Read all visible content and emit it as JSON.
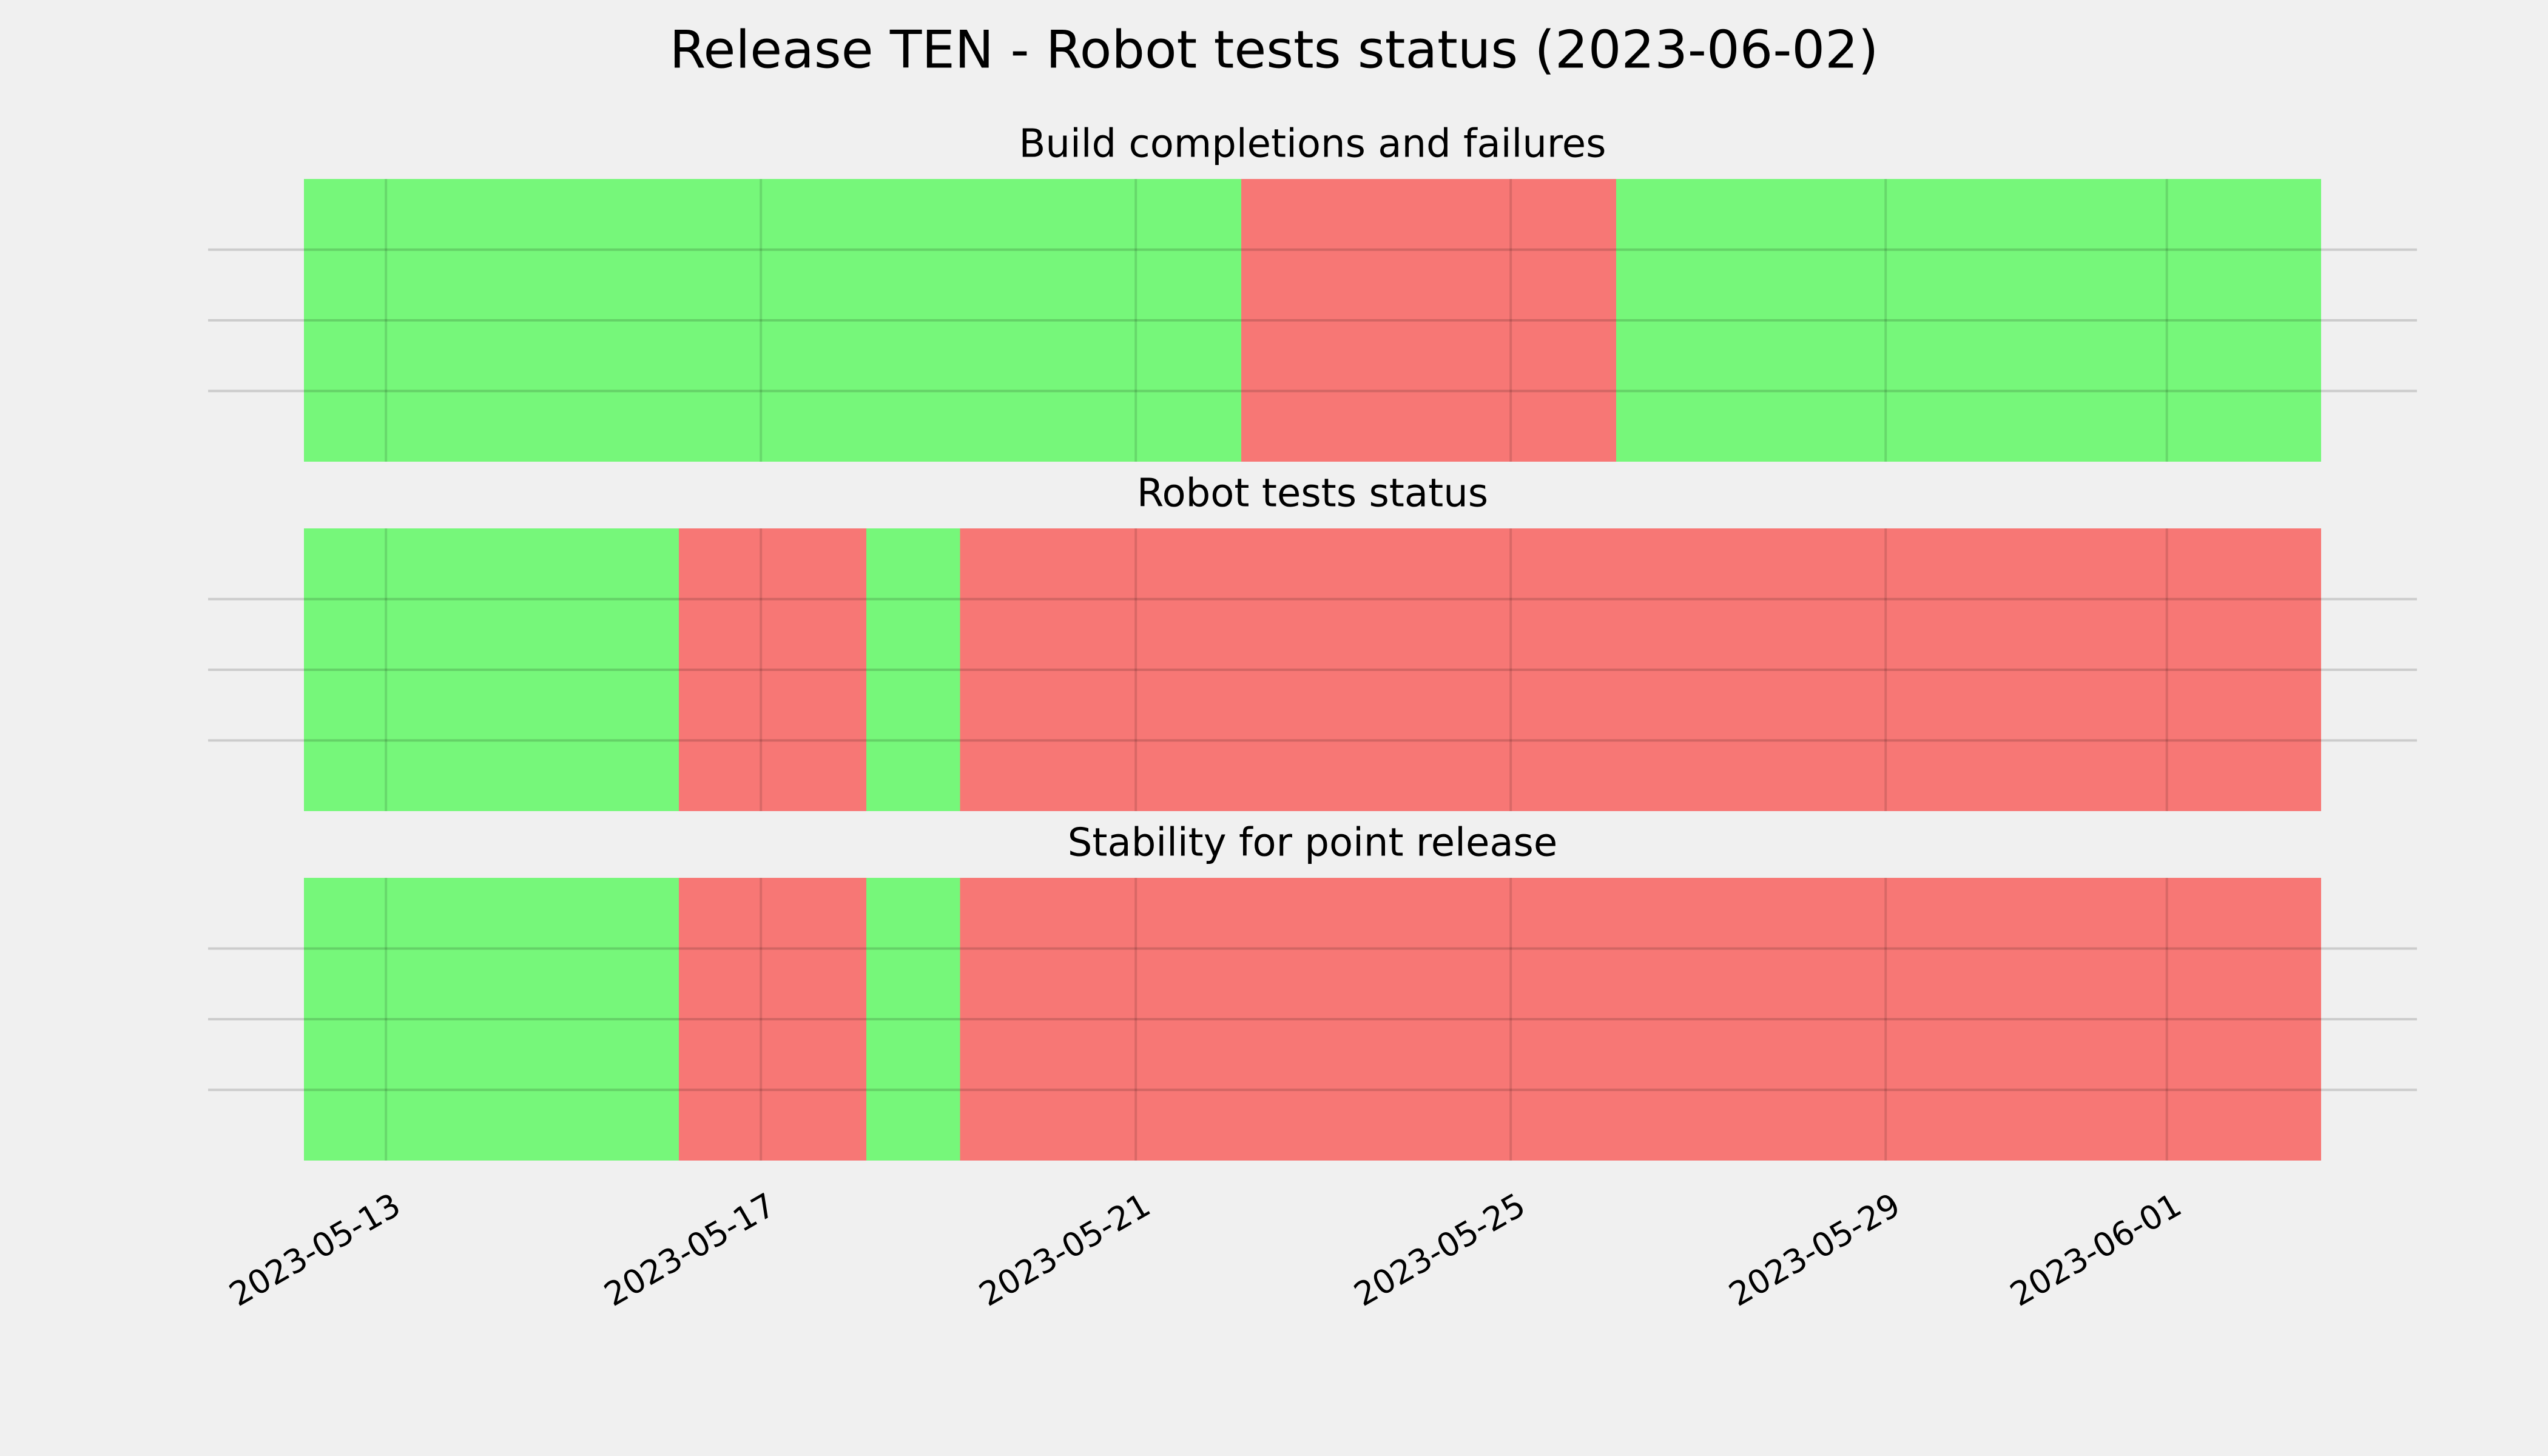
{
  "chart_data": {
    "type": "timeline",
    "title": "Release TEN - Robot tests status (2023-06-02)",
    "xlim": [
      "2023-05-12T03:00",
      "2023-06-02T15:30"
    ],
    "xticks": [
      "2023-05-13",
      "2023-05-17",
      "2023-05-21",
      "2023-05-25",
      "2023-05-29",
      "2023-06-01"
    ],
    "grid": true,
    "panels": [
      {
        "title": "Build completions and failures",
        "segments": [
          {
            "start": "2023-05-12T03:00",
            "end": "2023-05-22T03:00",
            "color": "#76f77a"
          },
          {
            "start": "2023-05-22T03:00",
            "end": "2023-05-26T03:00",
            "color": "#f77775"
          },
          {
            "start": "2023-05-26T03:00",
            "end": "2023-06-02T15:30",
            "color": "#76f77a"
          }
        ]
      },
      {
        "title": "Robot tests status",
        "segments": [
          {
            "start": "2023-05-12T03:00",
            "end": "2023-05-16T03:00",
            "color": "#76f77a"
          },
          {
            "start": "2023-05-16T03:00",
            "end": "2023-05-18T03:00",
            "color": "#f77775"
          },
          {
            "start": "2023-05-18T03:00",
            "end": "2023-05-19T03:00",
            "color": "#76f77a"
          },
          {
            "start": "2023-05-19T03:00",
            "end": "2023-06-02T15:30",
            "color": "#f77775"
          }
        ]
      },
      {
        "title": "Stability for point release",
        "segments": [
          {
            "start": "2023-05-12T03:00",
            "end": "2023-05-16T03:00",
            "color": "#76f77a"
          },
          {
            "start": "2023-05-16T03:00",
            "end": "2023-05-18T03:00",
            "color": "#f77775"
          },
          {
            "start": "2023-05-18T03:00",
            "end": "2023-05-19T03:00",
            "color": "#76f77a"
          },
          {
            "start": "2023-05-19T03:00",
            "end": "2023-06-02T15:30",
            "color": "#f77775"
          }
        ]
      }
    ]
  }
}
